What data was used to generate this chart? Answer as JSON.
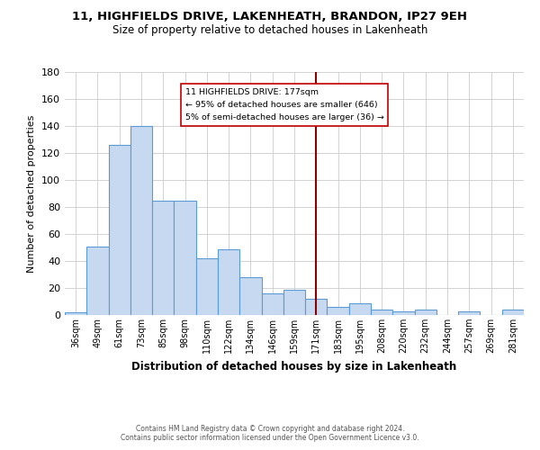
{
  "title": "11, HIGHFIELDS DRIVE, LAKENHEATH, BRANDON, IP27 9EH",
  "subtitle": "Size of property relative to detached houses in Lakenheath",
  "xlabel": "Distribution of detached houses by size in Lakenheath",
  "ylabel": "Number of detached properties",
  "footer_line1": "Contains HM Land Registry data © Crown copyright and database right 2024.",
  "footer_line2": "Contains public sector information licensed under the Open Government Licence v3.0.",
  "bar_labels": [
    "36sqm",
    "49sqm",
    "61sqm",
    "73sqm",
    "85sqm",
    "98sqm",
    "110sqm",
    "122sqm",
    "134sqm",
    "146sqm",
    "159sqm",
    "171sqm",
    "183sqm",
    "195sqm",
    "208sqm",
    "220sqm",
    "232sqm",
    "244sqm",
    "257sqm",
    "269sqm",
    "281sqm"
  ],
  "bar_values": [
    2,
    51,
    126,
    140,
    85,
    85,
    42,
    49,
    28,
    16,
    19,
    12,
    6,
    9,
    4,
    3,
    4,
    0,
    3,
    0,
    4
  ],
  "bar_color": "#c6d9f0",
  "bar_edge_color": "#5b9bd5",
  "vline_x_index": 11,
  "vline_color": "#8b0000",
  "annotation_title": "11 HIGHFIELDS DRIVE: 177sqm",
  "annotation_line1": "← 95% of detached houses are smaller (646)",
  "annotation_line2": "5% of semi-detached houses are larger (36) →",
  "ylim": [
    0,
    180
  ],
  "yticks": [
    0,
    20,
    40,
    60,
    80,
    100,
    120,
    140,
    160,
    180
  ],
  "background_color": "#ffffff",
  "grid_color": "#cccccc"
}
